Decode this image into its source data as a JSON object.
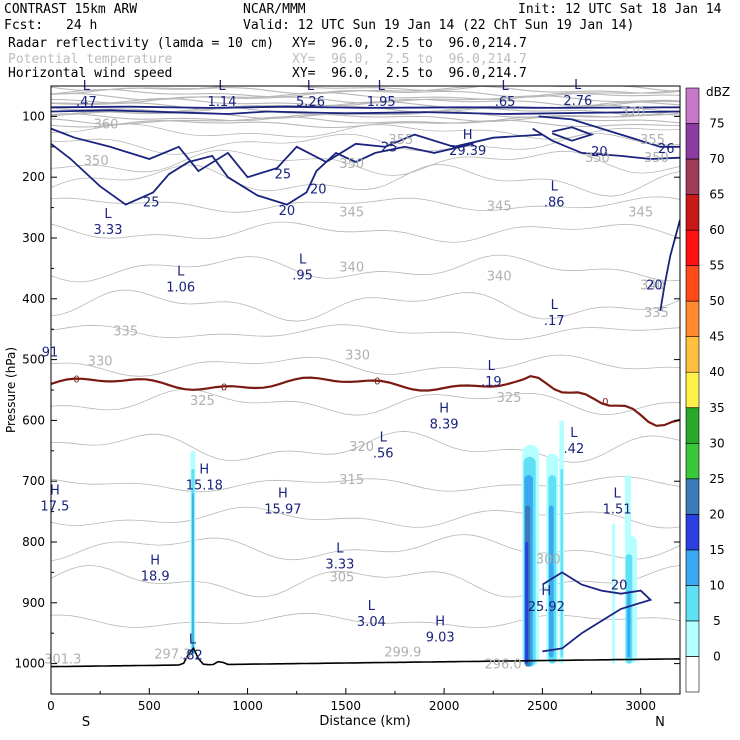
{
  "header": {
    "model": "CONTRAST 15km ARW",
    "org": "NCAR/MMM",
    "init": "Init: 12 UTC Sat 18 Jan 14",
    "fcst_label": "Fcst:",
    "fcst_value": "24 h",
    "valid": "Valid: 12 UTC Sun 19 Jan 14 (22 ChT Sun 19 Jan 14)",
    "fields": [
      {
        "name": "Radar reflectivity (lamda = 10 cm)",
        "xy": "XY=  96.0,  2.5 to  96.0,214.7",
        "faint": false
      },
      {
        "name": "Potential temperature",
        "xy": "XY=  96.0,  2.5 to  96.0,214.7",
        "faint": true
      },
      {
        "name": "Horizontal wind speed",
        "xy": "XY=  96.0,  2.5 to  96.0,214.7",
        "faint": false
      }
    ]
  },
  "chart_data": {
    "type": "cross-section",
    "xlabel": "Distance (km)",
    "ylabel": "Pressure (hPa)",
    "xlim": [
      0,
      3200
    ],
    "ylim": [
      50,
      1050
    ],
    "x_ticks": [
      "0",
      "500",
      "1000",
      "1500",
      "2000",
      "2500",
      "3000"
    ],
    "y_ticks": [
      "100",
      "200",
      "300",
      "400",
      "500",
      "600",
      "700",
      "800",
      "900",
      "1000"
    ],
    "x_end_labels": {
      "left": "S",
      "right": "N"
    },
    "colorbar": {
      "unit": "dBZ",
      "levels": [
        "0",
        "5",
        "10",
        "15",
        "20",
        "25",
        "30",
        "35",
        "40",
        "45",
        "50",
        "55",
        "60",
        "65",
        "70",
        "75"
      ],
      "colors": [
        "#ffffff",
        "#b4ffff",
        "#5fe0f5",
        "#3aa8f0",
        "#2c3fe0",
        "#3c7ab8",
        "#38c838",
        "#2aa82a",
        "#fff04a",
        "#ffc040",
        "#ff8a30",
        "#ff4a1a",
        "#ff1010",
        "#c81818",
        "#a03c58",
        "#8c3ca0",
        "#c878c8"
      ]
    },
    "theta_labels": [
      {
        "text": "370",
        "x": 2960,
        "p": 100
      },
      {
        "text": "360",
        "x": 280,
        "p": 120
      },
      {
        "text": "355",
        "x": 1780,
        "p": 145
      },
      {
        "text": "355",
        "x": 3060,
        "p": 145
      },
      {
        "text": "350",
        "x": 230,
        "p": 180
      },
      {
        "text": "350",
        "x": 1530,
        "p": 185
      },
      {
        "text": "350",
        "x": 2780,
        "p": 175
      },
      {
        "text": "350",
        "x": 3080,
        "p": 175
      },
      {
        "text": "345",
        "x": 1530,
        "p": 265
      },
      {
        "text": "345",
        "x": 2280,
        "p": 255
      },
      {
        "text": "345",
        "x": 3000,
        "p": 265
      },
      {
        "text": "340",
        "x": 1530,
        "p": 355
      },
      {
        "text": "340",
        "x": 2280,
        "p": 370
      },
      {
        "text": "340",
        "x": 3060,
        "p": 385
      },
      {
        "text": "335",
        "x": 380,
        "p": 460
      },
      {
        "text": "335",
        "x": 3080,
        "p": 430
      },
      {
        "text": "330",
        "x": 250,
        "p": 510
      },
      {
        "text": "330",
        "x": 1560,
        "p": 500
      },
      {
        "text": "325",
        "x": 770,
        "p": 575
      },
      {
        "text": "325",
        "x": 2330,
        "p": 570
      },
      {
        "text": "320",
        "x": 1580,
        "p": 650
      },
      {
        "text": "315",
        "x": 1530,
        "p": 705
      },
      {
        "text": "305",
        "x": 1480,
        "p": 865
      },
      {
        "text": "300",
        "x": 2530,
        "p": 835
      }
    ],
    "theta_surface_labels": [
      {
        "text": "301.3",
        "x": 60,
        "p": 1000
      },
      {
        "text": "297.3",
        "x": 620,
        "p": 992
      },
      {
        "text": "299.9",
        "x": 1790,
        "p": 988
      },
      {
        "text": "296.0",
        "x": 2300,
        "p": 1008
      }
    ],
    "wind_labels": [
      {
        "text": "25",
        "x": 1720,
        "p": 158
      },
      {
        "text": "25",
        "x": 1180,
        "p": 202
      },
      {
        "text": "20",
        "x": 1360,
        "p": 227
      },
      {
        "text": "20",
        "x": 1200,
        "p": 262
      },
      {
        "text": "25",
        "x": 510,
        "p": 248
      },
      {
        "text": "20",
        "x": 2790,
        "p": 165
      },
      {
        "text": "26",
        "x": 3130,
        "p": 160
      },
      {
        "text": "20",
        "x": 3070,
        "p": 385
      },
      {
        "text": "20",
        "x": 2890,
        "p": 878
      }
    ],
    "extrema": [
      {
        "type": "L",
        "value": ".47",
        "x": 180,
        "p": 80
      },
      {
        "type": "L",
        "value": "1.14",
        "x": 870,
        "p": 80
      },
      {
        "type": "L",
        "value": "5.26",
        "x": 1320,
        "p": 80
      },
      {
        "type": "L",
        "value": "1.95",
        "x": 1680,
        "p": 80
      },
      {
        "type": "L",
        "value": ".65",
        "x": 2310,
        "p": 80
      },
      {
        "type": "L",
        "value": "2.76",
        "x": 2680,
        "p": 78
      },
      {
        "type": "H",
        "value": "29.39",
        "x": 2120,
        "p": 160
      },
      {
        "type": "L",
        "value": ".86",
        "x": 2560,
        "p": 245
      },
      {
        "type": "L",
        "value": "3.33",
        "x": 290,
        "p": 290
      },
      {
        "type": "L",
        "value": "1.06",
        "x": 660,
        "p": 385
      },
      {
        "type": "L",
        "value": ".95",
        "x": 1280,
        "p": 365
      },
      {
        "type": "L",
        "value": ".17",
        "x": 2560,
        "p": 440
      },
      {
        "type": "L",
        "value": ".19",
        "x": 2240,
        "p": 540
      },
      {
        "type": "H",
        "value": "8.39",
        "x": 2000,
        "p": 610
      },
      {
        "type": "L",
        "value": ".56",
        "x": 1690,
        "p": 658
      },
      {
        "type": "L",
        "value": ".42",
        "x": 2660,
        "p": 650
      },
      {
        "type": "H",
        "value": "15.18",
        "x": 780,
        "p": 710
      },
      {
        "type": "H",
        "value": "15.97",
        "x": 1180,
        "p": 750
      },
      {
        "type": "H",
        "value": "17.5",
        "x": 20,
        "p": 745
      },
      {
        "type": "L",
        "value": "1.51",
        "x": 2880,
        "p": 750
      },
      {
        "type": "H",
        "value": "18.9",
        "x": 530,
        "p": 860
      },
      {
        "type": "L",
        "value": "3.33",
        "x": 1470,
        "p": 840
      },
      {
        "type": "H",
        "value": "25.92",
        "x": 2520,
        "p": 910
      },
      {
        "type": "L",
        "value": "3.04",
        "x": 1630,
        "p": 935
      },
      {
        "type": "H",
        "value": "9.03",
        "x": 1980,
        "p": 960
      },
      {
        "type": "L",
        "value": ".82",
        "x": 720,
        "p": 990
      }
    ],
    "freezing_level": {
      "label": "0",
      "label_x": [
        130,
        880,
        1660,
        2820
      ]
    },
    "partial_left_labels": [
      "91"
    ]
  }
}
